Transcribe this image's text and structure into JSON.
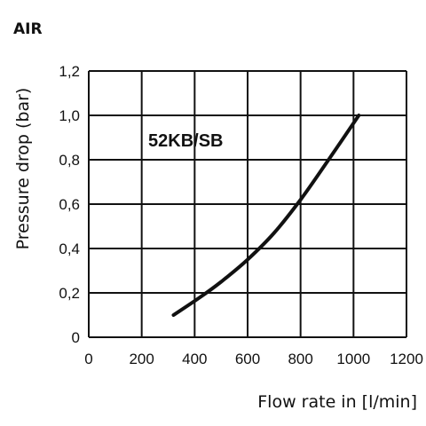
{
  "chart_data": {
    "type": "line",
    "title": "AIR",
    "xlabel": "Flow rate in [l/min]",
    "ylabel": "Pressure drop (bar)",
    "xlim": [
      0,
      1200
    ],
    "ylim": [
      0,
      1.2
    ],
    "x_ticks": [
      "0",
      "200",
      "400",
      "600",
      "800",
      "1000",
      "1200"
    ],
    "y_ticks": [
      "0",
      "0,2",
      "0,4",
      "0,6",
      "0,8",
      "1,0",
      "1,2"
    ],
    "grid": true,
    "annotation": "52KB/SB",
    "series": [
      {
        "x": [
          320,
          420,
          500,
          600,
          700,
          800,
          900,
          1020
        ],
        "y": [
          0.1,
          0.18,
          0.25,
          0.35,
          0.47,
          0.62,
          0.79,
          1.0
        ]
      }
    ]
  }
}
